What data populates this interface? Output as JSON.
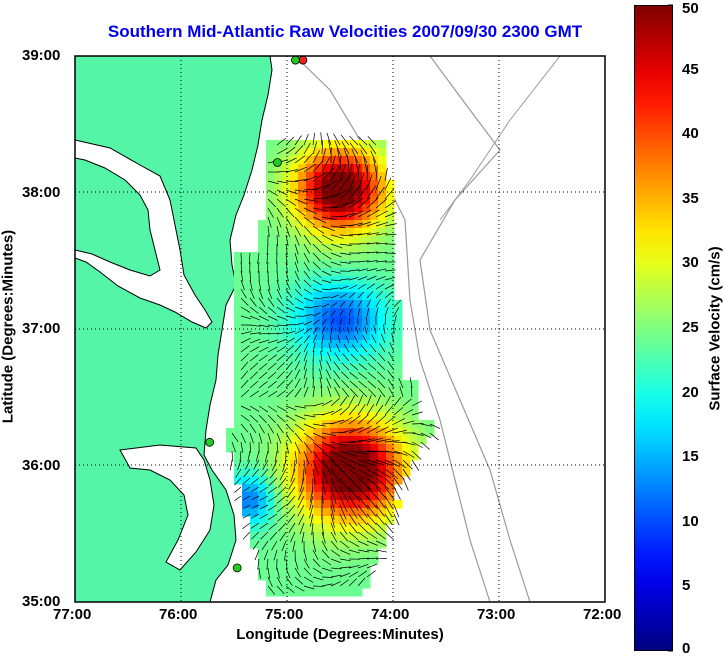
{
  "title": "Southern Mid-Atlantic Raw Velocities 2007/09/30 2300 GMT",
  "xlabel": "Longitude (Degrees:Minutes)",
  "ylabel": "Latitude (Degrees:Minutes)",
  "x_ticks": [
    "77:00",
    "76:00",
    "75:00",
    "74:00",
    "73:00",
    "72:00"
  ],
  "y_ticks": [
    "39:00",
    "38:00",
    "37:00",
    "36:00",
    "35:00"
  ],
  "colorbar": {
    "label": "Surface Velocity (cm/s)",
    "ticks": [
      "0",
      "5",
      "10",
      "15",
      "20",
      "25",
      "30",
      "35",
      "40",
      "45",
      "50"
    ],
    "range": [
      0,
      50
    ]
  },
  "colors": {
    "title": "#0000ee",
    "land": "#55f5a8",
    "coastline": "#000000",
    "bathymetry": "#9a9a9a",
    "station": "#22cc22",
    "station_alt": "#ee2222"
  },
  "map_extent": {
    "lon": [
      -77,
      -72
    ],
    "lat": [
      35,
      39
    ]
  },
  "grid": true,
  "stations": [
    {
      "lon": -74.85,
      "lat": 38.97,
      "color": "station_alt"
    },
    {
      "lon": -74.92,
      "lat": 38.97,
      "color": "station"
    },
    {
      "lon": -75.09,
      "lat": 38.22,
      "color": "station"
    },
    {
      "lon": -75.73,
      "lat": 36.17,
      "color": "station"
    },
    {
      "lon": -75.47,
      "lat": 35.25,
      "color": "station"
    }
  ]
}
